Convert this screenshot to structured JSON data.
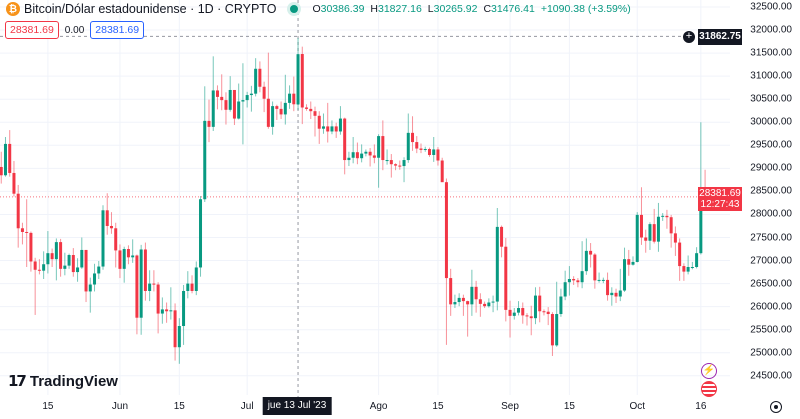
{
  "header": {
    "title": "Bitcoin/Dólar estadounidense · 1D · CRYPTO",
    "ohlc": {
      "o_label": "O",
      "o": "30386.39",
      "h_label": "H",
      "h": "31827.16",
      "l_label": "L",
      "l": "30265.92",
      "c_label": "C",
      "c": "31476.41",
      "change": "+1090.38 (+3.59%)"
    },
    "sell_price": "28381.69",
    "spread": "0.00",
    "buy_price": "28381.69"
  },
  "logo": "TradingView",
  "crosshair": {
    "price": "31862.75",
    "date_label": "jue 13 Jul '23",
    "date": "2023-07-13"
  },
  "last_price": {
    "price": "28381.69",
    "countdown": "12:27:43"
  },
  "colors": {
    "up": "#089981",
    "down": "#f23645",
    "last_price": "#f23645",
    "crosshair": "#131722"
  },
  "icons": [
    "bitcoin-icon",
    "live-dot-icon",
    "plus-circle-icon",
    "lightning-icon",
    "us-flag-icon",
    "settings-icon"
  ],
  "chart_data": {
    "type": "candlestick",
    "title": "Bitcoin/Dólar estadounidense · 1D · CRYPTO",
    "ylim": [
      24300,
      32600
    ],
    "grid": true,
    "y_ticks": [
      "32500.00",
      "32000.00",
      "31500.00",
      "31000.00",
      "30500.00",
      "30000.00",
      "29500.00",
      "29000.00",
      "28500.00",
      "28000.00",
      "27500.00",
      "27000.00",
      "26500.00",
      "26000.00",
      "25500.00",
      "25000.00",
      "24500.00"
    ],
    "x_ticks": [
      {
        "label": "15",
        "date": "2023-05-15"
      },
      {
        "label": "Jun",
        "date": "2023-06-01"
      },
      {
        "label": "15",
        "date": "2023-06-15"
      },
      {
        "label": "Jul",
        "date": "2023-07-01"
      },
      {
        "label": "Ago",
        "date": "2023-08-01"
      },
      {
        "label": "15",
        "date": "2023-08-15"
      },
      {
        "label": "Sep",
        "date": "2023-09-01"
      },
      {
        "label": "15",
        "date": "2023-09-15"
      },
      {
        "label": "Oct",
        "date": "2023-10-01"
      },
      {
        "label": "16",
        "date": "2023-10-16"
      }
    ],
    "candles": [
      [
        "2023-05-03",
        28670,
        29270,
        28130,
        29030
      ],
      [
        "2023-05-04",
        29030,
        29360,
        28670,
        28850
      ],
      [
        "2023-05-05",
        28850,
        29680,
        28820,
        29530
      ],
      [
        "2023-05-06",
        29530,
        29830,
        28820,
        28900
      ],
      [
        "2023-05-07",
        28900,
        29160,
        28390,
        28450
      ],
      [
        "2023-05-08",
        28450,
        28640,
        27280,
        27700
      ],
      [
        "2023-05-09",
        27700,
        27820,
        27350,
        27620
      ],
      [
        "2023-05-10",
        27620,
        28330,
        26860,
        27600
      ],
      [
        "2023-05-11",
        27600,
        27630,
        26760,
        26980
      ],
      [
        "2023-05-12",
        26980,
        27060,
        25820,
        26800
      ],
      [
        "2023-05-13",
        26800,
        27030,
        26700,
        26780
      ],
      [
        "2023-05-14",
        26780,
        27200,
        26600,
        26920
      ],
      [
        "2023-05-15",
        26920,
        27640,
        26720,
        27160
      ],
      [
        "2023-05-16",
        27160,
        27260,
        26860,
        27030
      ],
      [
        "2023-05-17",
        27030,
        27480,
        26570,
        27400
      ],
      [
        "2023-05-18",
        27400,
        27470,
        26650,
        26820
      ],
      [
        "2023-05-19",
        26820,
        27170,
        26680,
        26890
      ],
      [
        "2023-05-20",
        26890,
        27150,
        26820,
        27120
      ],
      [
        "2023-05-21",
        27120,
        27270,
        26650,
        26750
      ],
      [
        "2023-05-22",
        26750,
        27050,
        26540,
        26850
      ],
      [
        "2023-05-23",
        26850,
        27500,
        26820,
        27230
      ],
      [
        "2023-05-24",
        27230,
        27230,
        26100,
        26330
      ],
      [
        "2023-05-25",
        26330,
        26630,
        25870,
        26480
      ],
      [
        "2023-05-26",
        26480,
        26930,
        26330,
        26720
      ],
      [
        "2023-05-27",
        26720,
        26990,
        26600,
        26870
      ],
      [
        "2023-05-28",
        26870,
        28200,
        26800,
        28090
      ],
      [
        "2023-05-29",
        28090,
        28460,
        27560,
        27750
      ],
      [
        "2023-05-30",
        27750,
        28050,
        27580,
        27700
      ],
      [
        "2023-05-31",
        27700,
        27820,
        26850,
        27220
      ],
      [
        "2023-06-01",
        27220,
        27350,
        26620,
        26820
      ],
      [
        "2023-06-02",
        26820,
        27300,
        26520,
        27250
      ],
      [
        "2023-06-03",
        27250,
        27330,
        26920,
        27070
      ],
      [
        "2023-06-04",
        27070,
        27460,
        26950,
        27110
      ],
      [
        "2023-06-05",
        27110,
        27130,
        25400,
        25760
      ],
      [
        "2023-06-06",
        25760,
        27340,
        25390,
        27240
      ],
      [
        "2023-06-07",
        27240,
        27390,
        26130,
        26340
      ],
      [
        "2023-06-08",
        26340,
        26790,
        26120,
        26500
      ],
      [
        "2023-06-09",
        26500,
        26790,
        26330,
        26480
      ],
      [
        "2023-06-10",
        26480,
        26530,
        25420,
        25850
      ],
      [
        "2023-06-11",
        25850,
        26200,
        25630,
        25940
      ],
      [
        "2023-06-12",
        25940,
        26090,
        25650,
        25900
      ],
      [
        "2023-06-13",
        25900,
        26420,
        25720,
        25920
      ],
      [
        "2023-06-14",
        25920,
        26070,
        24830,
        25120
      ],
      [
        "2023-06-15",
        25120,
        25750,
        24760,
        25580
      ],
      [
        "2023-06-16",
        25580,
        26470,
        25170,
        26340
      ],
      [
        "2023-06-17",
        26340,
        26770,
        26180,
        26500
      ],
      [
        "2023-06-18",
        26500,
        26680,
        26290,
        26340
      ],
      [
        "2023-06-19",
        26340,
        26980,
        26250,
        26850
      ],
      [
        "2023-06-20",
        26850,
        28400,
        26650,
        28330
      ],
      [
        "2023-06-21",
        28330,
        30780,
        28270,
        30030
      ],
      [
        "2023-06-22",
        30030,
        30490,
        29570,
        29900
      ],
      [
        "2023-06-23",
        29900,
        31430,
        29810,
        30690
      ],
      [
        "2023-06-24",
        30690,
        30800,
        30280,
        30550
      ],
      [
        "2023-06-25",
        30550,
        31040,
        30260,
        30480
      ],
      [
        "2023-06-26",
        30480,
        30650,
        29950,
        30270
      ],
      [
        "2023-06-27",
        30270,
        31000,
        30230,
        30700
      ],
      [
        "2023-06-28",
        30700,
        30700,
        29940,
        30080
      ],
      [
        "2023-06-29",
        30080,
        30840,
        30060,
        30450
      ],
      [
        "2023-06-30",
        30450,
        31280,
        29520,
        30480
      ],
      [
        "2023-07-01",
        30480,
        30660,
        30320,
        30590
      ],
      [
        "2023-07-02",
        30590,
        30790,
        30230,
        30620
      ],
      [
        "2023-07-03",
        30620,
        31390,
        30560,
        31160
      ],
      [
        "2023-07-04",
        31160,
        31320,
        30650,
        30770
      ],
      [
        "2023-07-05",
        30770,
        30880,
        30220,
        30510
      ],
      [
        "2023-07-06",
        30510,
        31510,
        29860,
        29900
      ],
      [
        "2023-07-07",
        29900,
        30450,
        29730,
        30350
      ],
      [
        "2023-07-08",
        30350,
        30380,
        30050,
        30290
      ],
      [
        "2023-07-09",
        30290,
        30450,
        30070,
        30170
      ],
      [
        "2023-07-10",
        30170,
        31030,
        29950,
        30420
      ],
      [
        "2023-07-11",
        30420,
        30800,
        30290,
        30620
      ],
      [
        "2023-07-12",
        30620,
        30990,
        30240,
        30390
      ],
      [
        "2023-07-13",
        30386.39,
        31827.16,
        30265.92,
        31476.41
      ],
      [
        "2023-07-14",
        31480,
        31640,
        29960,
        30320
      ],
      [
        "2023-07-15",
        30320,
        30390,
        30250,
        30290
      ],
      [
        "2023-07-16",
        30290,
        30450,
        30070,
        30240
      ],
      [
        "2023-07-17",
        30240,
        30340,
        29690,
        30140
      ],
      [
        "2023-07-18",
        30140,
        30240,
        29530,
        29860
      ],
      [
        "2023-07-19",
        29860,
        30190,
        29750,
        29910
      ],
      [
        "2023-07-20",
        29910,
        30420,
        29560,
        29800
      ],
      [
        "2023-07-21",
        29800,
        30040,
        29740,
        29910
      ],
      [
        "2023-07-22",
        29910,
        29990,
        29660,
        29800
      ],
      [
        "2023-07-23",
        29800,
        30350,
        29730,
        30080
      ],
      [
        "2023-07-24",
        30080,
        30100,
        28870,
        29180
      ],
      [
        "2023-07-25",
        29180,
        29360,
        29050,
        29230
      ],
      [
        "2023-07-26",
        29230,
        29680,
        29110,
        29350
      ],
      [
        "2023-07-27",
        29350,
        29560,
        29090,
        29220
      ],
      [
        "2023-07-28",
        29220,
        29520,
        29130,
        29320
      ],
      [
        "2023-07-29",
        29320,
        29410,
        29260,
        29360
      ],
      [
        "2023-07-30",
        29360,
        29440,
        29040,
        29280
      ],
      [
        "2023-07-31",
        29280,
        29520,
        29110,
        29230
      ],
      [
        "2023-08-01",
        29230,
        29740,
        28580,
        29700
      ],
      [
        "2023-08-02",
        29700,
        30040,
        28960,
        29180
      ],
      [
        "2023-08-03",
        29180,
        29410,
        29080,
        29180
      ],
      [
        "2023-08-04",
        29180,
        29310,
        28800,
        29090
      ],
      [
        "2023-08-05",
        29090,
        29110,
        28960,
        29060
      ],
      [
        "2023-08-06",
        29060,
        29170,
        28970,
        29050
      ],
      [
        "2023-08-07",
        29050,
        29240,
        28700,
        29180
      ],
      [
        "2023-08-08",
        29180,
        30190,
        29120,
        29770
      ],
      [
        "2023-08-09",
        29770,
        30130,
        29380,
        29570
      ],
      [
        "2023-08-10",
        29570,
        29700,
        29330,
        29430
      ],
      [
        "2023-08-11",
        29430,
        29540,
        29330,
        29400
      ],
      [
        "2023-08-12",
        29400,
        29470,
        29360,
        29420
      ],
      [
        "2023-08-13",
        29420,
        29450,
        29250,
        29290
      ],
      [
        "2023-08-14",
        29290,
        29680,
        29140,
        29410
      ],
      [
        "2023-08-15",
        29410,
        29460,
        29060,
        29170
      ],
      [
        "2023-08-16",
        29170,
        29230,
        28710,
        28700
      ],
      [
        "2023-08-17",
        28700,
        28780,
        25170,
        26620
      ],
      [
        "2023-08-18",
        26620,
        26820,
        25800,
        26050
      ],
      [
        "2023-08-19",
        26050,
        26260,
        25970,
        26100
      ],
      [
        "2023-08-20",
        26100,
        26290,
        26010,
        26190
      ],
      [
        "2023-08-21",
        26190,
        26260,
        25800,
        26120
      ],
      [
        "2023-08-22",
        26120,
        26130,
        25350,
        26050
      ],
      [
        "2023-08-23",
        26050,
        26800,
        25800,
        26430
      ],
      [
        "2023-08-24",
        26430,
        26560,
        25870,
        26160
      ],
      [
        "2023-08-25",
        26160,
        26290,
        25780,
        26060
      ],
      [
        "2023-08-26",
        26060,
        26110,
        25970,
        26010
      ],
      [
        "2023-08-27",
        26010,
        26180,
        25980,
        26090
      ],
      [
        "2023-08-28",
        26090,
        26240,
        25880,
        26110
      ],
      [
        "2023-08-29",
        26110,
        28140,
        25920,
        27730
      ],
      [
        "2023-08-30",
        27730,
        27760,
        27070,
        27300
      ],
      [
        "2023-08-31",
        27300,
        27490,
        25680,
        25930
      ],
      [
        "2023-09-01",
        25930,
        26130,
        25330,
        25800
      ],
      [
        "2023-09-02",
        25800,
        25970,
        25720,
        25870
      ],
      [
        "2023-09-03",
        25870,
        26120,
        25810,
        25970
      ],
      [
        "2023-09-04",
        25970,
        26090,
        25630,
        25810
      ],
      [
        "2023-09-05",
        25810,
        25860,
        25590,
        25790
      ],
      [
        "2023-09-06",
        25790,
        26020,
        25380,
        25750
      ],
      [
        "2023-09-07",
        25750,
        26420,
        25620,
        26240
      ],
      [
        "2023-09-08",
        26240,
        26430,
        25660,
        25900
      ],
      [
        "2023-09-09",
        25900,
        25940,
        25810,
        25890
      ],
      [
        "2023-09-10",
        25890,
        25990,
        25600,
        25840
      ],
      [
        "2023-09-11",
        25840,
        25880,
        24930,
        25160
      ],
      [
        "2023-09-12",
        25160,
        26540,
        25130,
        25840
      ],
      [
        "2023-09-13",
        25840,
        26390,
        25780,
        26220
      ],
      [
        "2023-09-14",
        26220,
        26780,
        26140,
        26530
      ],
      [
        "2023-09-15",
        26530,
        26880,
        26240,
        26600
      ],
      [
        "2023-09-16",
        26600,
        26660,
        26470,
        26570
      ],
      [
        "2023-09-17",
        26570,
        26620,
        26420,
        26530
      ],
      [
        "2023-09-18",
        26530,
        27420,
        26400,
        26770
      ],
      [
        "2023-09-19",
        26770,
        27480,
        26690,
        27210
      ],
      [
        "2023-09-20",
        27210,
        27380,
        26850,
        27130
      ],
      [
        "2023-09-21",
        27130,
        27160,
        26390,
        26570
      ],
      [
        "2023-09-22",
        26570,
        26740,
        26520,
        26580
      ],
      [
        "2023-09-23",
        26580,
        26630,
        26510,
        26580
      ],
      [
        "2023-09-24",
        26580,
        26740,
        26130,
        26250
      ],
      [
        "2023-09-25",
        26250,
        26420,
        26020,
        26300
      ],
      [
        "2023-09-26",
        26300,
        26390,
        26080,
        26220
      ],
      [
        "2023-09-27",
        26220,
        26820,
        26120,
        26350
      ],
      [
        "2023-09-28",
        26350,
        27280,
        26320,
        27030
      ],
      [
        "2023-09-29",
        27030,
        27230,
        26670,
        26910
      ],
      [
        "2023-09-30",
        26910,
        27090,
        26890,
        26970
      ],
      [
        "2023-10-01",
        26970,
        28050,
        26960,
        27990
      ],
      [
        "2023-10-02",
        27990,
        28590,
        27340,
        27500
      ],
      [
        "2023-10-03",
        27500,
        27670,
        27170,
        27430
      ],
      [
        "2023-10-04",
        27430,
        27830,
        27230,
        27790
      ],
      [
        "2023-10-05",
        27790,
        28120,
        27370,
        27410
      ],
      [
        "2023-10-06",
        27410,
        28250,
        27190,
        27950
      ],
      [
        "2023-10-07",
        27950,
        28030,
        27860,
        27970
      ],
      [
        "2023-10-08",
        27970,
        28100,
        27690,
        27940
      ],
      [
        "2023-10-09",
        27940,
        27990,
        27280,
        27590
      ],
      [
        "2023-10-10",
        27590,
        27740,
        27100,
        27390
      ],
      [
        "2023-10-11",
        27390,
        27480,
        26560,
        26880
      ],
      [
        "2023-10-12",
        26880,
        26940,
        26560,
        26760
      ],
      [
        "2023-10-13",
        26760,
        27110,
        26700,
        26860
      ],
      [
        "2023-10-14",
        26860,
        26970,
        26810,
        26860
      ],
      [
        "2023-10-15",
        26860,
        27290,
        26830,
        27160
      ],
      [
        "2023-10-16",
        27160,
        30000,
        27130,
        28520
      ],
      [
        "2023-10-17",
        28520,
        28970,
        28120,
        28381.69
      ]
    ]
  }
}
